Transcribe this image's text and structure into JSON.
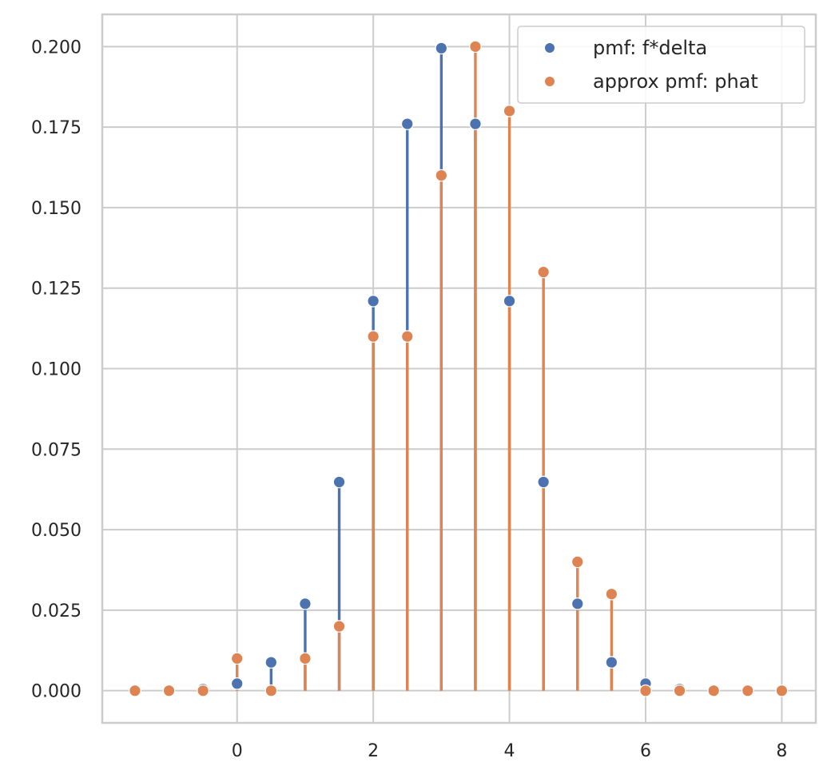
{
  "chart_data": {
    "type": "scatter",
    "title": "",
    "xlabel": "",
    "ylabel": "",
    "xlim": [
      -1.98,
      8.5
    ],
    "ylim": [
      -0.01,
      0.21
    ],
    "xticks": [
      0,
      2,
      4,
      6,
      8
    ],
    "yticks": [
      0.0,
      0.025,
      0.05,
      0.075,
      0.1,
      0.125,
      0.15,
      0.175,
      0.2
    ],
    "ytick_labels": [
      "0.000",
      "0.025",
      "0.050",
      "0.075",
      "0.100",
      "0.125",
      "0.150",
      "0.175",
      "0.200"
    ],
    "grid": true,
    "legend_position": "top-right",
    "colors": {
      "series_1": "#4c72b0",
      "series_2": "#dd8452",
      "grid": "#cccccc",
      "frame": "#cccccc"
    },
    "x": [
      -1.5,
      -1.0,
      -0.5,
      0.0,
      0.5,
      1.0,
      1.5,
      2.0,
      2.5,
      3.0,
      3.5,
      4.0,
      4.5,
      5.0,
      5.5,
      6.0,
      6.5,
      7.0,
      7.5,
      8.0
    ],
    "series": [
      {
        "name": "pmf: f*delta",
        "values": [
          0.0,
          0.0,
          0.0005,
          0.0022,
          0.0088,
          0.027,
          0.0648,
          0.121,
          0.176,
          0.1995,
          0.176,
          0.121,
          0.0648,
          0.027,
          0.0088,
          0.0022,
          0.0005,
          0.0,
          0.0,
          0.0
        ]
      },
      {
        "name": "approx pmf: phat",
        "values": [
          0.0,
          0.0,
          0.0,
          0.01,
          0.0,
          0.01,
          0.02,
          0.11,
          0.11,
          0.16,
          0.2,
          0.18,
          0.13,
          0.04,
          0.03,
          0.0,
          0.0,
          0.0,
          0.0,
          0.0
        ]
      }
    ]
  }
}
